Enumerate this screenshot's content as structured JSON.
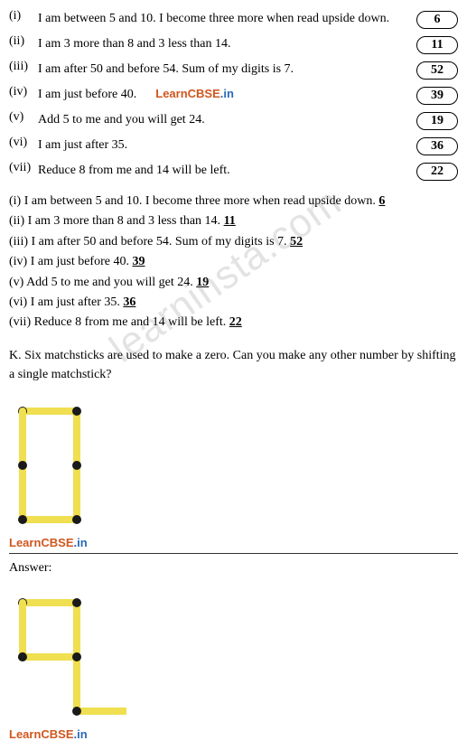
{
  "riddles": [
    {
      "num": "(i)",
      "text": "I am between 5 and 10. I become three more when read upside down.",
      "ans": "6"
    },
    {
      "num": "(ii)",
      "text": "I am 3 more than 8 and 3 less than 14.",
      "ans": "11"
    },
    {
      "num": "(iii)",
      "text": "I am after 50 and before 54. Sum of my digits is 7.",
      "ans": "52"
    },
    {
      "num": "(iv)",
      "text": "I am just before 40.",
      "ans": "39",
      "brand": true
    },
    {
      "num": "(v)",
      "text": "Add 5 to me and you will get 24.",
      "ans": "19"
    },
    {
      "num": "(vi)",
      "text": "I am just after 35.",
      "ans": "36"
    },
    {
      "num": "(vii)",
      "text": "Reduce 8 from me and 14 will be left.",
      "ans": "22"
    }
  ],
  "answers": [
    {
      "num": "(i)",
      "text": "I am between 5 and 10. I become three more when read upside down.",
      "ans": "6"
    },
    {
      "num": "(ii)",
      "text": "I am 3 more than 8 and 3 less than 14.",
      "ans": "11"
    },
    {
      "num": "(iii)",
      "text": "I am after 50 and before 54. Sum of my digits is 7.",
      "ans": "52"
    },
    {
      "num": "(iv)",
      "text": "I am just before 40.",
      "ans": "39"
    },
    {
      "num": "(v)",
      "text": "Add 5 to me and you will get 24.",
      "ans": "19"
    },
    {
      "num": "(vi)",
      "text": "I am just after 35.",
      "ans": "36"
    },
    {
      "num": "(vii)",
      "text": "Reduce 8 from me and 14 will be left.",
      "ans": "22"
    }
  ],
  "sectionK": "K. Six matchsticks are used to make a zero. Can you make any other number by shifting a single matchstick?",
  "answerLabel": "Answer:",
  "brand": {
    "part1": "LearnCBSE",
    "part2": ".in"
  },
  "watermark": "learninsta.com",
  "matchstick": {
    "stick_color": "#f0df50",
    "head_color": "#1a1a1a",
    "stick_width": 8,
    "stick_length": 60,
    "head_radius": 5
  }
}
